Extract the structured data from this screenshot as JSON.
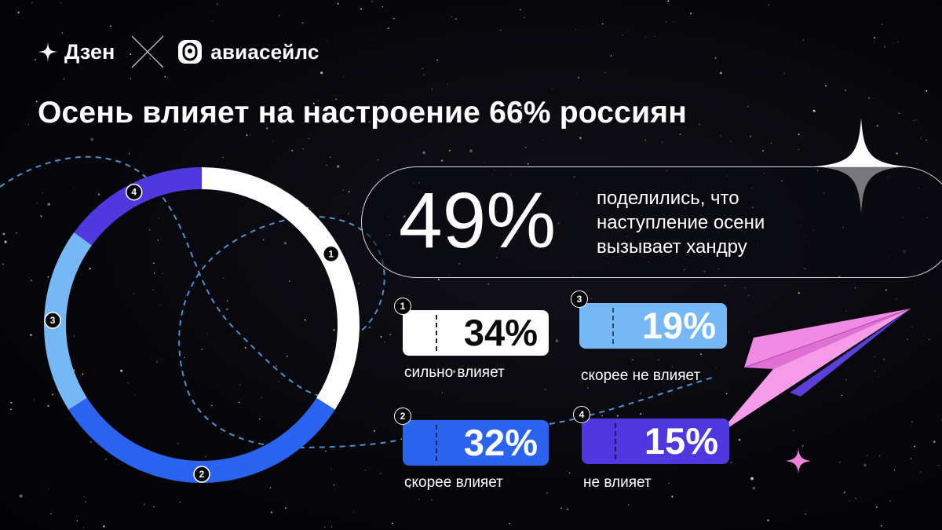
{
  "header": {
    "brand_dzen": "Дзен",
    "brand_aviasales": "авиасейлс",
    "title": "Осень влияет на настроение 66% россиян"
  },
  "highlight": {
    "value": "49%",
    "text_lines": [
      "поделились, что",
      "наступление осени",
      "вызывает хандру"
    ]
  },
  "chart_data": {
    "type": "pie",
    "subtype": "donut",
    "categories": [
      "сильно влияет",
      "скорее влияет",
      "скорее не влияет",
      "не влияет"
    ],
    "values": [
      34,
      32,
      19,
      15
    ],
    "value_labels": [
      "34%",
      "32%",
      "19%",
      "15%"
    ],
    "markers": [
      "1",
      "2",
      "3",
      "4"
    ],
    "colors": [
      "#ffffff",
      "#2a64ee",
      "#75b8f5",
      "#5038e0"
    ],
    "start": "top",
    "direction": "clockwise"
  },
  "colors": {
    "background": "#05050a",
    "plane": "#f08ae4",
    "plane_shadow": "#5b3fd8",
    "dashed_path": "#4da3e6",
    "sparkle": "#ffffff",
    "small_sparkle": "#ee82d8"
  },
  "icons": [
    "dzen-star-icon",
    "cross-icon",
    "aviasales-badge-icon",
    "sparkle-icon",
    "paper-plane-icon"
  ]
}
